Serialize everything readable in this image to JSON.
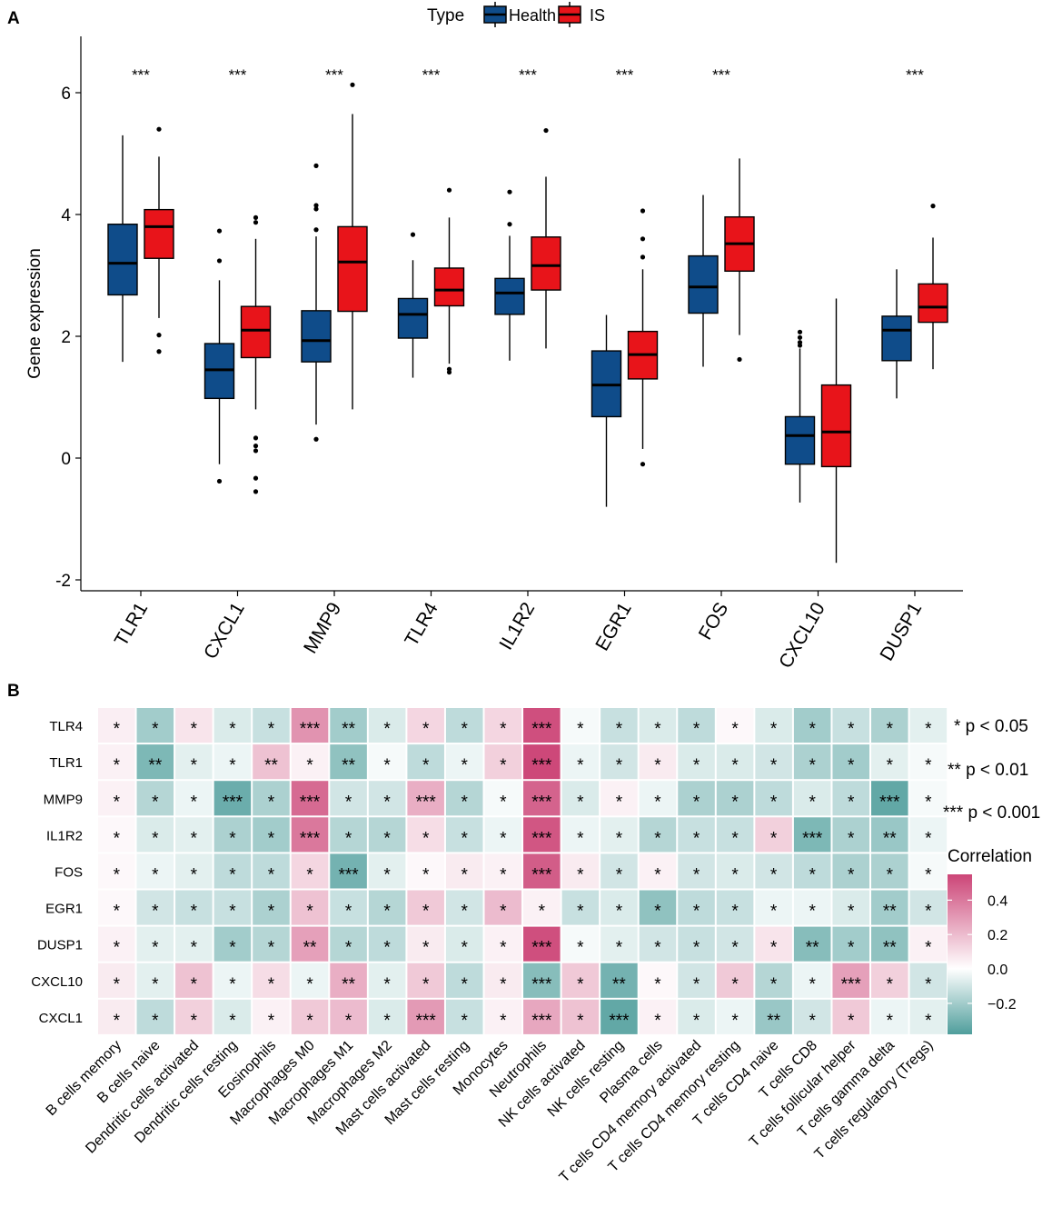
{
  "panel_a": {
    "label": "A",
    "legend": {
      "title": "Type",
      "health": "Health",
      "is": "IS"
    },
    "colors": {
      "health": "#0F4C8A",
      "is": "#E8141A"
    },
    "chart_data": {
      "type": "box",
      "title": "",
      "ylabel": "Gene expression",
      "xlabel": "",
      "ylim": [
        -2.2,
        6.6
      ],
      "yticks": [
        "-2",
        "0",
        "2",
        "4",
        "6"
      ],
      "ytick_values": [
        -2,
        0,
        2,
        4,
        6
      ],
      "categories": [
        "TLR1",
        "CXCL1",
        "MMP9",
        "TLR4",
        "IL1R2",
        "EGR1",
        "FOS",
        "CXCL10",
        "DUSP1"
      ],
      "significance": [
        "***",
        "***",
        "***",
        "***",
        "***",
        "***",
        "***",
        "",
        "***"
      ],
      "series": [
        {
          "name": "Health",
          "boxes": [
            {
              "min": 1.58,
              "q1": 2.68,
              "median": 3.2,
              "q3": 3.84,
              "max": 5.3,
              "outliers": []
            },
            {
              "min": -0.1,
              "q1": 0.98,
              "median": 1.45,
              "q3": 1.88,
              "max": 2.92,
              "outliers": [
                3.73,
                3.24,
                -0.38
              ]
            },
            {
              "min": 0.55,
              "q1": 1.58,
              "median": 1.93,
              "q3": 2.42,
              "max": 3.64,
              "outliers": [
                4.8,
                4.15,
                4.09,
                3.75,
                0.31
              ]
            },
            {
              "min": 1.32,
              "q1": 1.97,
              "median": 2.36,
              "q3": 2.62,
              "max": 3.25,
              "outliers": [
                3.67
              ]
            },
            {
              "min": 1.6,
              "q1": 2.36,
              "median": 2.71,
              "q3": 2.95,
              "max": 3.65,
              "outliers": [
                4.37,
                3.84
              ]
            },
            {
              "min": -0.8,
              "q1": 0.68,
              "median": 1.2,
              "q3": 1.76,
              "max": 2.35,
              "outliers": []
            },
            {
              "min": 1.5,
              "q1": 2.38,
              "median": 2.81,
              "q3": 3.32,
              "max": 4.32,
              "outliers": []
            },
            {
              "min": -0.73,
              "q1": -0.1,
              "median": 0.37,
              "q3": 0.68,
              "max": 1.8,
              "outliers": [
                2.07,
                1.98,
                1.9,
                1.85
              ]
            },
            {
              "min": 0.98,
              "q1": 1.6,
              "median": 2.1,
              "q3": 2.33,
              "max": 3.1,
              "outliers": []
            }
          ]
        },
        {
          "name": "IS",
          "boxes": [
            {
              "min": 2.3,
              "q1": 3.28,
              "median": 3.8,
              "q3": 4.08,
              "max": 4.95,
              "outliers": [
                5.4,
                2.02,
                1.75
              ]
            },
            {
              "min": 0.8,
              "q1": 1.65,
              "median": 2.1,
              "q3": 2.49,
              "max": 3.6,
              "outliers": [
                3.95,
                3.87,
                0.33,
                0.2,
                0.12,
                -0.33,
                -0.55
              ]
            },
            {
              "min": 0.8,
              "q1": 2.41,
              "median": 3.22,
              "q3": 3.8,
              "max": 5.65,
              "outliers": [
                6.13
              ]
            },
            {
              "min": 1.55,
              "q1": 2.5,
              "median": 2.76,
              "q3": 3.12,
              "max": 3.95,
              "outliers": [
                4.4,
                1.46,
                1.41
              ]
            },
            {
              "min": 1.8,
              "q1": 2.76,
              "median": 3.16,
              "q3": 3.63,
              "max": 4.62,
              "outliers": [
                5.38
              ]
            },
            {
              "min": 0.15,
              "q1": 1.3,
              "median": 1.7,
              "q3": 2.08,
              "max": 3.1,
              "outliers": [
                4.06,
                3.6,
                3.3,
                -0.1
              ]
            },
            {
              "min": 2.02,
              "q1": 3.07,
              "median": 3.52,
              "q3": 3.96,
              "max": 4.92,
              "outliers": [
                1.62
              ]
            },
            {
              "min": -1.72,
              "q1": -0.14,
              "median": 0.43,
              "q3": 1.2,
              "max": 2.62,
              "outliers": []
            },
            {
              "min": 1.46,
              "q1": 2.23,
              "median": 2.48,
              "q3": 2.86,
              "max": 3.62,
              "outliers": [
                4.14
              ]
            }
          ]
        }
      ]
    }
  },
  "panel_b": {
    "label": "B",
    "sig_legend": [
      "* p < 0.05",
      "** p < 0.01",
      "*** p < 0.001"
    ],
    "colorbar": {
      "title": "Correlation",
      "ticks": [
        "0.4",
        "0.2",
        "0.0",
        "−0.2"
      ],
      "tick_values": [
        0.4,
        0.2,
        0.0,
        -0.2
      ],
      "range": [
        -0.38,
        0.55
      ],
      "low_color": "#4F9E9C",
      "mid_color": "#FFFFFF",
      "high_color": "#CC4577"
    },
    "chart_data": {
      "type": "heatmap",
      "rows": [
        "TLR4",
        "TLR1",
        "MMP9",
        "IL1R2",
        "FOS",
        "EGR1",
        "DUSP1",
        "CXCL10",
        "CXCL1"
      ],
      "columns": [
        "B cells memory",
        "B cells naive",
        "Dendritic cells activated",
        "Dendritic cells resting",
        "Eosinophils",
        "Macrophages M0",
        "Macrophages M1",
        "Macrophages M2",
        "Mast cells activated",
        "Mast cells resting",
        "Monocytes",
        "Neutrophils",
        "NK cells activated",
        "NK cells resting",
        "Plasma cells",
        "T cells CD4 memory activated",
        "T cells CD4 memory resting",
        "T cells CD4 naive",
        "T cells CD8",
        "T cells follicular helper",
        "T cells gamma delta",
        "T cells regulatory (Tregs)"
      ],
      "values": [
        [
          0.05,
          -0.2,
          0.08,
          -0.08,
          -0.12,
          0.32,
          -0.2,
          -0.08,
          0.12,
          -0.14,
          0.12,
          0.52,
          -0.02,
          -0.12,
          -0.08,
          -0.14,
          0.02,
          -0.08,
          -0.2,
          -0.12,
          -0.18,
          -0.06
        ],
        [
          0.04,
          -0.28,
          -0.06,
          -0.04,
          0.18,
          0.04,
          -0.24,
          -0.02,
          -0.14,
          -0.04,
          0.14,
          0.54,
          -0.04,
          -0.1,
          0.06,
          -0.08,
          -0.08,
          -0.1,
          -0.18,
          -0.2,
          -0.06,
          -0.02
        ],
        [
          0.04,
          -0.16,
          -0.04,
          -0.32,
          -0.18,
          0.44,
          -0.1,
          -0.1,
          0.24,
          -0.16,
          -0.02,
          0.46,
          -0.08,
          0.04,
          -0.04,
          -0.18,
          -0.18,
          -0.14,
          -0.08,
          -0.14,
          -0.34,
          -0.02
        ],
        [
          0.02,
          -0.08,
          -0.06,
          -0.18,
          -0.2,
          0.4,
          -0.16,
          -0.16,
          0.1,
          -0.12,
          -0.04,
          0.5,
          -0.04,
          -0.06,
          -0.16,
          -0.12,
          -0.12,
          0.14,
          -0.28,
          -0.18,
          -0.22,
          -0.04
        ],
        [
          0.02,
          -0.04,
          -0.06,
          -0.14,
          -0.14,
          0.12,
          -0.3,
          -0.06,
          0.02,
          0.06,
          0.04,
          0.48,
          0.06,
          -0.1,
          0.04,
          -0.1,
          -0.08,
          -0.1,
          -0.14,
          -0.18,
          -0.18,
          -0.02
        ],
        [
          0.02,
          -0.1,
          -0.12,
          -0.12,
          -0.18,
          0.18,
          -0.12,
          -0.16,
          0.16,
          -0.1,
          0.2,
          0.04,
          -0.12,
          -0.08,
          -0.24,
          -0.14,
          -0.12,
          -0.04,
          -0.04,
          -0.08,
          -0.2,
          -0.1
        ],
        [
          0.04,
          -0.06,
          -0.06,
          -0.2,
          -0.16,
          0.28,
          -0.16,
          -0.14,
          0.06,
          -0.08,
          0.04,
          0.52,
          -0.02,
          -0.06,
          -0.1,
          -0.12,
          -0.1,
          0.08,
          -0.26,
          -0.2,
          -0.24,
          0.04
        ],
        [
          0.06,
          -0.06,
          0.18,
          -0.04,
          0.1,
          -0.04,
          0.24,
          -0.06,
          0.16,
          -0.14,
          0.06,
          -0.26,
          0.16,
          -0.3,
          0.02,
          -0.1,
          0.16,
          -0.16,
          -0.04,
          0.28,
          0.14,
          -0.1
        ],
        [
          0.06,
          -0.14,
          0.14,
          -0.08,
          0.04,
          0.16,
          0.2,
          -0.08,
          0.3,
          -0.12,
          0.04,
          0.26,
          0.18,
          -0.34,
          0.04,
          -0.08,
          -0.04,
          -0.22,
          -0.1,
          0.16,
          -0.04,
          -0.06
        ]
      ],
      "stars": [
        [
          "*",
          "*",
          "*",
          "*",
          "*",
          "***",
          "**",
          "*",
          "*",
          "*",
          "*",
          "***",
          "*",
          "*",
          "*",
          "*",
          "*",
          "*",
          "*",
          "*",
          "*",
          "*"
        ],
        [
          "*",
          "**",
          "*",
          "*",
          "**",
          "*",
          "**",
          "*",
          "*",
          "*",
          "*",
          "***",
          "*",
          "*",
          "*",
          "*",
          "*",
          "*",
          "*",
          "*",
          "*",
          "*"
        ],
        [
          "*",
          "*",
          "*",
          "***",
          "*",
          "***",
          "*",
          "*",
          "***",
          "*",
          "*",
          "***",
          "*",
          "*",
          "*",
          "*",
          "*",
          "*",
          "*",
          "*",
          "***",
          "*"
        ],
        [
          "*",
          "*",
          "*",
          "*",
          "*",
          "***",
          "*",
          "*",
          "*",
          "*",
          "*",
          "***",
          "*",
          "*",
          "*",
          "*",
          "*",
          "*",
          "***",
          "*",
          "**",
          "*"
        ],
        [
          "*",
          "*",
          "*",
          "*",
          "*",
          "*",
          "***",
          "*",
          "*",
          "*",
          "*",
          "***",
          "*",
          "*",
          "*",
          "*",
          "*",
          "*",
          "*",
          "*",
          "*",
          "*"
        ],
        [
          "*",
          "*",
          "*",
          "*",
          "*",
          "*",
          "*",
          "*",
          "*",
          "*",
          "*",
          "*",
          "*",
          "*",
          "*",
          "*",
          "*",
          "*",
          "*",
          "*",
          "**",
          "*"
        ],
        [
          "*",
          "*",
          "*",
          "*",
          "*",
          "**",
          "*",
          "*",
          "*",
          "*",
          "*",
          "***",
          "*",
          "*",
          "*",
          "*",
          "*",
          "*",
          "**",
          "*",
          "**",
          "*"
        ],
        [
          "*",
          "*",
          "*",
          "*",
          "*",
          "*",
          "**",
          "*",
          "*",
          "*",
          "*",
          "***",
          "*",
          "**",
          "*",
          "*",
          "*",
          "*",
          "*",
          "***",
          "*",
          "*"
        ],
        [
          "*",
          "*",
          "*",
          "*",
          "*",
          "*",
          "*",
          "*",
          "***",
          "*",
          "*",
          "***",
          "*",
          "***",
          "*",
          "*",
          "*",
          "**",
          "*",
          "*",
          "*",
          "*"
        ]
      ]
    }
  }
}
